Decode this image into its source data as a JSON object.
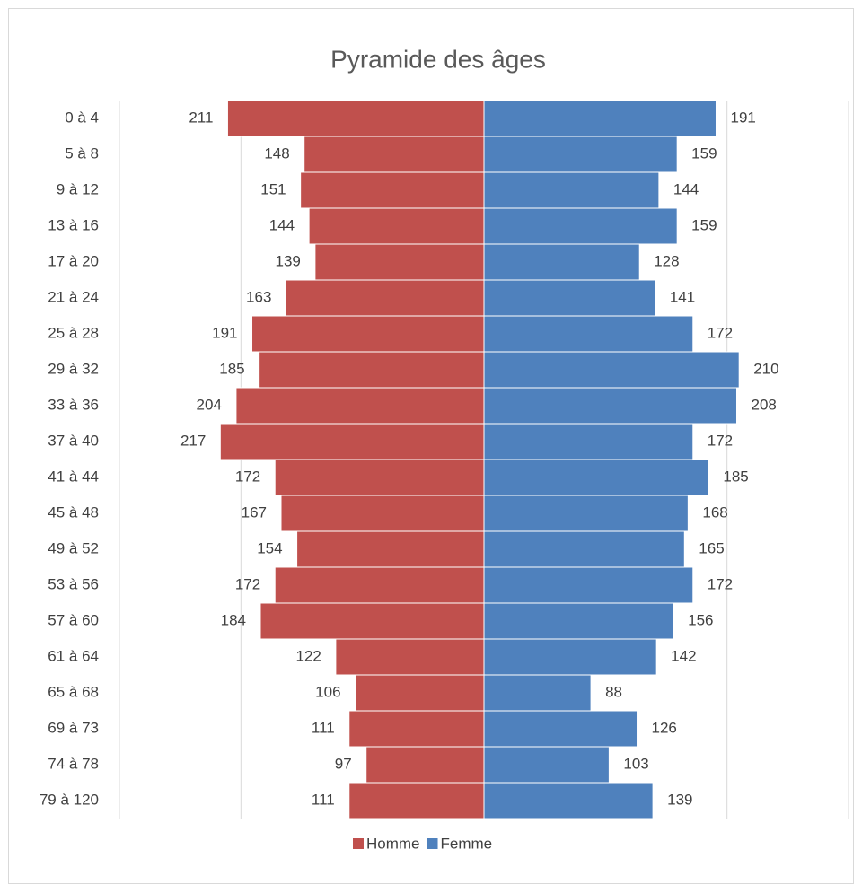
{
  "chart_data": {
    "type": "pyramid",
    "title": "Pyramide des âges",
    "categories": [
      "0 à 4",
      "5 à 8",
      "9 à 12",
      "13 à 16",
      "17 à 20",
      "21 à 24",
      "25 à 28",
      "29 à 32",
      "33 à 36",
      "37 à 40",
      "41 à 44",
      "45 à 48",
      "49 à 52",
      "53 à 56",
      "57 à 60",
      "61 à 64",
      "65 à 68",
      "69 à 73",
      "74 à 78",
      "79 à 120"
    ],
    "series": [
      {
        "name": "Homme",
        "color": "#c0504d",
        "values": [
          211,
          148,
          151,
          144,
          139,
          163,
          191,
          185,
          204,
          217,
          172,
          167,
          154,
          172,
          184,
          122,
          106,
          111,
          97,
          111
        ]
      },
      {
        "name": "Femme",
        "color": "#4f81bd",
        "values": [
          191,
          159,
          144,
          159,
          128,
          141,
          172,
          210,
          208,
          172,
          185,
          168,
          165,
          172,
          156,
          142,
          88,
          126,
          103,
          139
        ]
      }
    ],
    "xlim": [
      -300,
      300
    ],
    "xticks": [
      -300,
      -200,
      0,
      200,
      300
    ],
    "grid": true,
    "legend": "bottom"
  }
}
